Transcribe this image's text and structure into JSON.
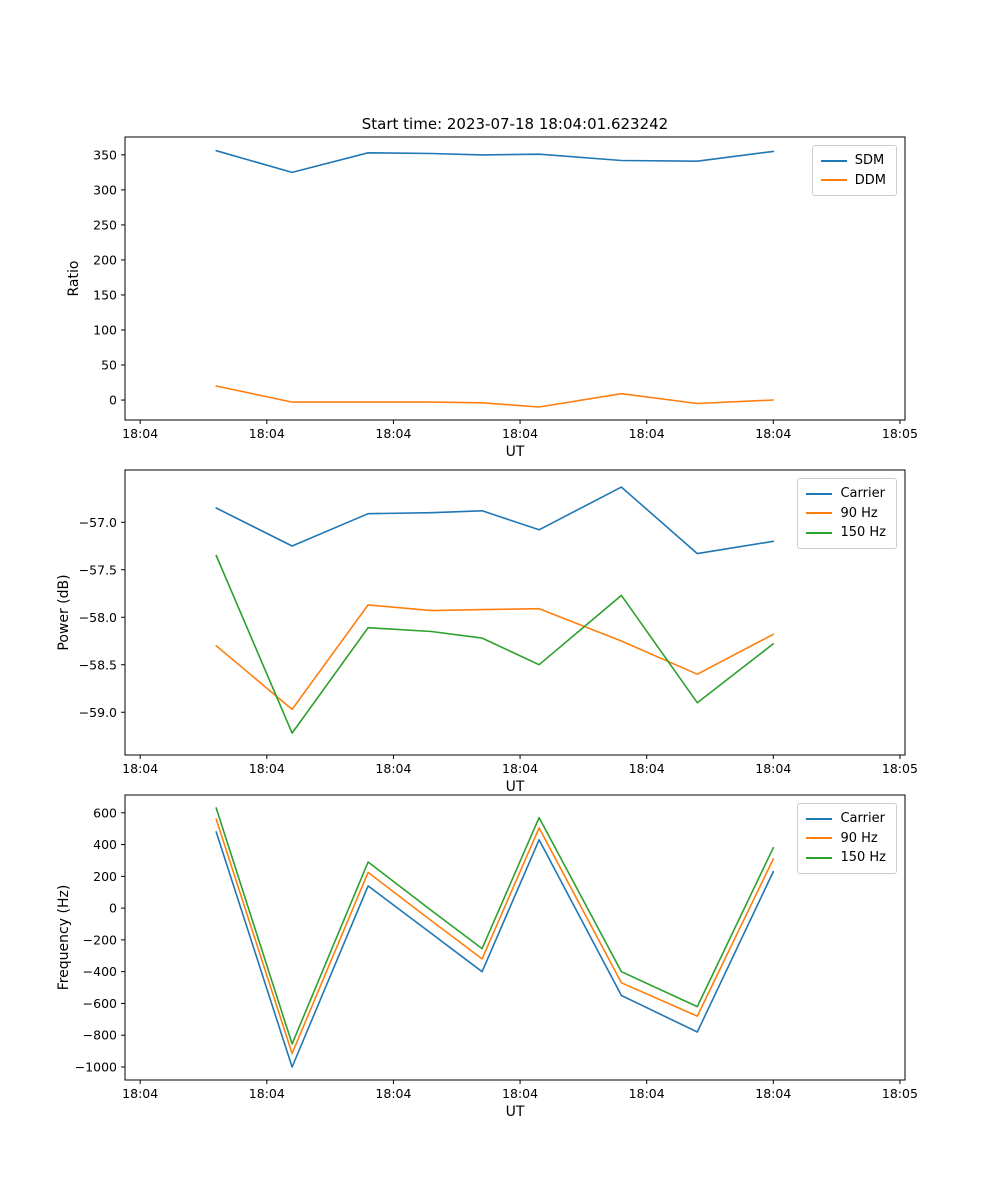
{
  "figure_title": "Start time: 2023-07-18 18:04:01.623242",
  "chart_data": [
    {
      "id": "ratio",
      "type": "line",
      "title": "Start time: 2023-07-18 18:04:01.623242",
      "xlabel": "UT",
      "ylabel": "Ratio",
      "x_seconds_after_18_04": [
        6,
        12,
        18,
        23,
        27,
        31.5,
        38,
        44,
        50
      ],
      "xlim": [
        -1.2,
        60.4
      ],
      "ylim": [
        -28.5,
        375.5
      ],
      "xticks": [
        {
          "v": 0,
          "label": "18:04"
        },
        {
          "v": 10,
          "label": "18:04"
        },
        {
          "v": 20,
          "label": "18:04"
        },
        {
          "v": 30,
          "label": "18:04"
        },
        {
          "v": 40,
          "label": "18:04"
        },
        {
          "v": 50,
          "label": "18:04"
        },
        {
          "v": 60,
          "label": "18:05"
        }
      ],
      "yticks": [
        {
          "v": 0,
          "label": "0"
        },
        {
          "v": 50,
          "label": "50"
        },
        {
          "v": 100,
          "label": "100"
        },
        {
          "v": 150,
          "label": "150"
        },
        {
          "v": 200,
          "label": "200"
        },
        {
          "v": 250,
          "label": "250"
        },
        {
          "v": 300,
          "label": "300"
        },
        {
          "v": 350,
          "label": "350"
        }
      ],
      "series": [
        {
          "name": "SDM",
          "color": "#1f77b4",
          "values": [
            356,
            325,
            353,
            352,
            350,
            351,
            342,
            341,
            355
          ]
        },
        {
          "name": "DDM",
          "color": "#ff7f0e",
          "values": [
            20,
            -3,
            -3,
            -3,
            -4,
            -10,
            9,
            -5,
            0
          ]
        }
      ],
      "legend_position": "upper right",
      "grid": false
    },
    {
      "id": "power",
      "type": "line",
      "title": "",
      "xlabel": "UT",
      "ylabel": "Power (dB)",
      "x_seconds_after_18_04": [
        6,
        12,
        18,
        23,
        27,
        31.5,
        38,
        44,
        50
      ],
      "xlim": [
        -1.2,
        60.4
      ],
      "ylim": [
        -59.45,
        -56.45
      ],
      "xticks": [
        {
          "v": 0,
          "label": "18:04"
        },
        {
          "v": 10,
          "label": "18:04"
        },
        {
          "v": 20,
          "label": "18:04"
        },
        {
          "v": 30,
          "label": "18:04"
        },
        {
          "v": 40,
          "label": "18:04"
        },
        {
          "v": 50,
          "label": "18:04"
        },
        {
          "v": 60,
          "label": "18:05"
        }
      ],
      "yticks": [
        {
          "v": -57.0,
          "label": "−57.0"
        },
        {
          "v": -57.5,
          "label": "−57.5"
        },
        {
          "v": -58.0,
          "label": "−58.0"
        },
        {
          "v": -58.5,
          "label": "−58.5"
        },
        {
          "v": -59.0,
          "label": "−59.0"
        }
      ],
      "series": [
        {
          "name": "Carrier",
          "color": "#1f77b4",
          "values": [
            -56.85,
            -57.25,
            -56.91,
            -56.9,
            -56.88,
            -57.08,
            -56.63,
            -57.33,
            -57.2
          ]
        },
        {
          "name": "90 Hz",
          "color": "#ff7f0e",
          "values": [
            -58.3,
            -58.97,
            -57.87,
            -57.93,
            -57.92,
            -57.91,
            -58.25,
            -58.6,
            -58.18
          ]
        },
        {
          "name": "150 Hz",
          "color": "#2ca02c",
          "values": [
            -57.35,
            -59.22,
            -58.11,
            -58.15,
            -58.22,
            -58.5,
            -57.77,
            -58.9,
            -58.28
          ]
        }
      ],
      "legend_position": "upper right",
      "grid": false
    },
    {
      "id": "freq",
      "type": "line",
      "title": "",
      "xlabel": "UT",
      "ylabel": "Frequency (Hz)",
      "x_seconds_after_18_04": [
        6,
        12,
        18,
        23,
        27,
        31.5,
        38,
        44,
        50
      ],
      "xlim": [
        -1.2,
        60.4
      ],
      "ylim": [
        -1082,
        712
      ],
      "xticks": [
        {
          "v": 0,
          "label": "18:04"
        },
        {
          "v": 10,
          "label": "18:04"
        },
        {
          "v": 20,
          "label": "18:04"
        },
        {
          "v": 30,
          "label": "18:04"
        },
        {
          "v": 40,
          "label": "18:04"
        },
        {
          "v": 50,
          "label": "18:04"
        },
        {
          "v": 60,
          "label": "18:05"
        }
      ],
      "yticks": [
        {
          "v": 600,
          "label": "600"
        },
        {
          "v": 400,
          "label": "400"
        },
        {
          "v": 200,
          "label": "200"
        },
        {
          "v": 0,
          "label": "0"
        },
        {
          "v": -200,
          "label": "−200"
        },
        {
          "v": -400,
          "label": "−400"
        },
        {
          "v": -600,
          "label": "−600"
        },
        {
          "v": -800,
          "label": "−800"
        },
        {
          "v": -1000,
          "label": "−1000"
        }
      ],
      "series": [
        {
          "name": "Carrier",
          "color": "#1f77b4",
          "values": [
            480,
            -1000,
            140,
            -160,
            -400,
            430,
            -550,
            -780,
            230
          ]
        },
        {
          "name": "90 Hz",
          "color": "#ff7f0e",
          "values": [
            560,
            -915,
            225,
            -80,
            -320,
            505,
            -470,
            -680,
            310
          ]
        },
        {
          "name": "150 Hz",
          "color": "#2ca02c",
          "values": [
            630,
            -855,
            290,
            -15,
            -255,
            570,
            -400,
            -620,
            380
          ]
        }
      ],
      "legend_position": "upper right",
      "grid": false
    }
  ]
}
